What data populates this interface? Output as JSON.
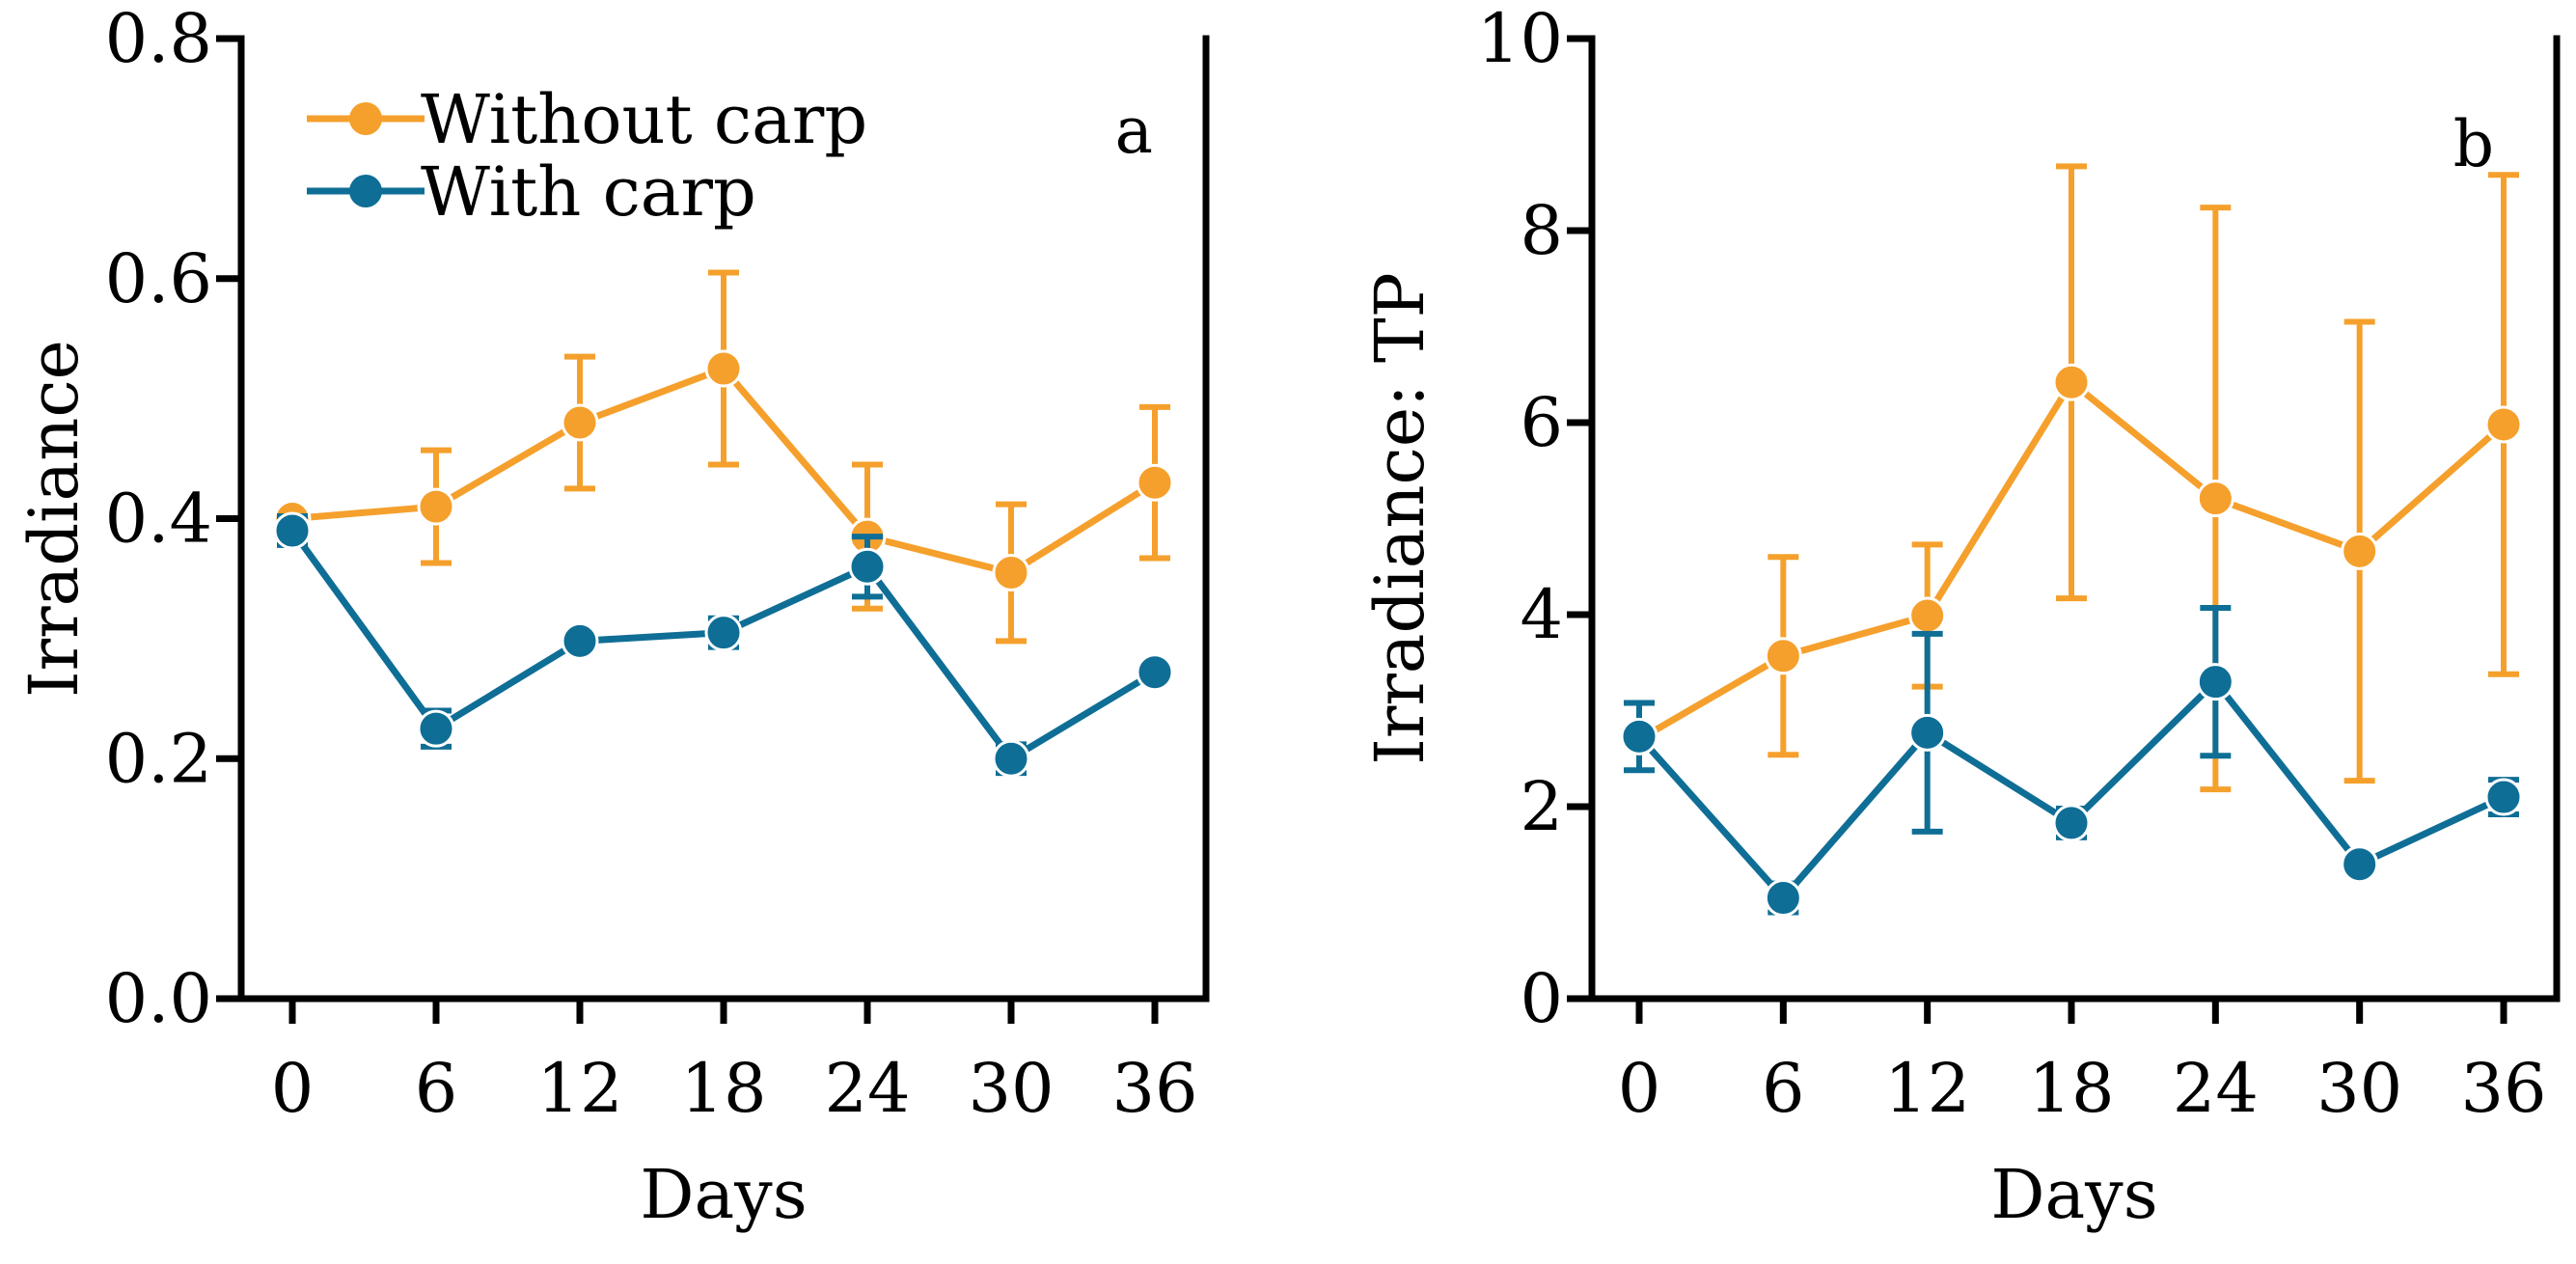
{
  "colors": {
    "without_carp": "#F5A02C",
    "with_carp": "#0F6E96",
    "axis": "#000000"
  },
  "legend": [
    {
      "label": "Without carp",
      "color": "#F5A02C"
    },
    {
      "label": "With carp",
      "color": "#0F6E96"
    }
  ],
  "chart_data": [
    {
      "type": "line",
      "panel_label": "a",
      "xlabel": "Days",
      "ylabel": "Irradiance",
      "x": [
        0,
        6,
        12,
        18,
        24,
        30,
        36
      ],
      "x_tick_labels": [
        "0",
        "6",
        "12",
        "18",
        "24",
        "30",
        "36"
      ],
      "ylim": [
        0,
        0.8
      ],
      "y_ticks": [
        0,
        0.2,
        0.4,
        0.6,
        0.8
      ],
      "y_tick_labels": [
        "0.0",
        "0.2",
        "0.4",
        "0.6",
        "0.8"
      ],
      "legend_position": "top-left",
      "series": [
        {
          "name": "Without carp",
          "color": "#F5A02C",
          "values": [
            0.4,
            0.41,
            0.48,
            0.525,
            0.385,
            0.355,
            0.43
          ],
          "errors": [
            0.005,
            0.047,
            0.055,
            0.08,
            0.06,
            0.057,
            0.063
          ]
        },
        {
          "name": "With carp",
          "color": "#0F6E96",
          "values": [
            0.39,
            0.225,
            0.298,
            0.305,
            0.36,
            0.2,
            0.272
          ],
          "errors": [
            0.012,
            0.015,
            0.005,
            0.012,
            0.025,
            0.012,
            0.005
          ]
        }
      ]
    },
    {
      "type": "line",
      "panel_label": "b",
      "xlabel": "Days",
      "ylabel": "Irradiance: TP",
      "x": [
        0,
        6,
        12,
        18,
        24,
        30,
        36
      ],
      "x_tick_labels": [
        "0",
        "6",
        "12",
        "18",
        "24",
        "30",
        "36"
      ],
      "ylim": [
        0,
        10
      ],
      "y_ticks": [
        0,
        2,
        4,
        6,
        8,
        10
      ],
      "y_tick_labels": [
        "0",
        "2",
        "4",
        "6",
        "8",
        "10"
      ],
      "series": [
        {
          "name": "Without carp",
          "color": "#F5A02C",
          "values": [
            2.7,
            3.57,
            3.99,
            6.42,
            5.21,
            4.66,
            5.98
          ],
          "errors": [
            0.05,
            1.03,
            0.74,
            2.25,
            3.03,
            2.39,
            2.6
          ]
        },
        {
          "name": "With carp",
          "color": "#0F6E96",
          "values": [
            2.73,
            1.05,
            2.77,
            1.83,
            3.3,
            1.4,
            2.1
          ],
          "errors": [
            0.35,
            0.15,
            1.03,
            0.15,
            0.77,
            0.05,
            0.18
          ]
        }
      ]
    }
  ]
}
